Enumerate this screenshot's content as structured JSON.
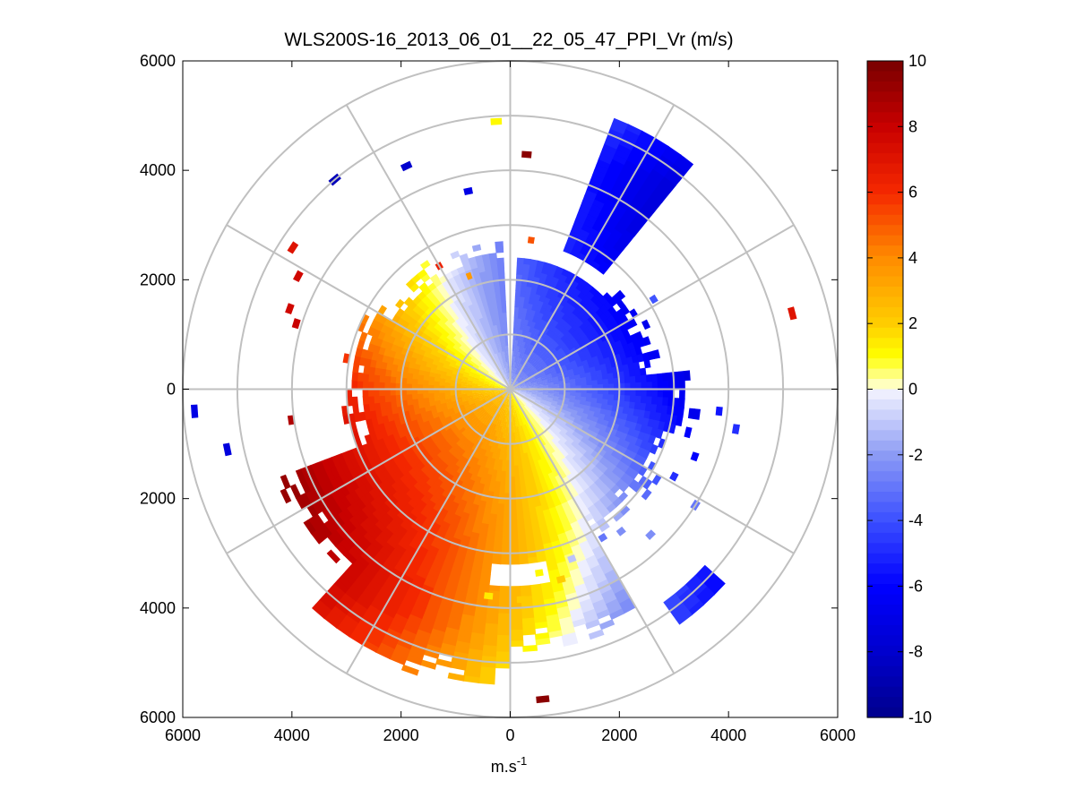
{
  "chart_data": {
    "type": "heatmap",
    "subtype": "polar-ppi",
    "title": "WLS200S-16_2013_06_01__22_05_47_PPI_Vr (m/s)",
    "xlabel_base": "m.s",
    "xlabel_sup": "-1",
    "ylabel": "",
    "xlim": [
      -6000,
      6000
    ],
    "ylim": [
      -6000,
      6000
    ],
    "x_ticks": [
      "6000",
      "4000",
      "2000",
      "0",
      "2000",
      "4000",
      "6000"
    ],
    "y_ticks": [
      "6000",
      "4000",
      "2000",
      "0",
      "2000",
      "4000",
      "6000"
    ],
    "range_rings": [
      1000,
      2000,
      3000,
      4000,
      5000,
      6000
    ],
    "spoke_angles_deg": [
      0,
      30,
      60,
      90,
      120,
      150,
      180,
      210,
      240,
      270,
      300,
      330
    ],
    "max_range": 5500,
    "range_gate": 100,
    "azimuth_step_deg": 3,
    "colorbar": {
      "min": -10,
      "max": 10,
      "levels": 64,
      "tick_labels": [
        "10",
        "8",
        "6",
        "4",
        "2",
        "0",
        "-2",
        "-4",
        "-6",
        "-8",
        "-10"
      ],
      "tick_values": [
        10,
        8,
        6,
        4,
        2,
        0,
        -2,
        -4,
        -6,
        -8,
        -10
      ]
    },
    "wind_model": {
      "description": "approximate radial velocity Vr(az, r); positive = orange/red sector to the south-west, negative = blue sector to the north-east",
      "peak_azimuth_deg": 220,
      "amplitude": 9.5,
      "near_range_amplitude": 2.2,
      "amplitude_ramp_range": 4500,
      "rotation_deg_per_km": 8
    },
    "coverage": {
      "full_range": 2400,
      "sectors": [
        {
          "from_deg": 45,
          "to_deg": 85,
          "max_range": 2800
        },
        {
          "from_deg": 85,
          "to_deg": 105,
          "max_range": 3500
        },
        {
          "from_deg": 105,
          "to_deg": 150,
          "max_range": 3200
        },
        {
          "from_deg": 150,
          "to_deg": 180,
          "max_range": 4900
        },
        {
          "from_deg": 180,
          "to_deg": 222,
          "max_range": 5500
        },
        {
          "from_deg": 222,
          "to_deg": 250,
          "max_range": 4600
        },
        {
          "from_deg": 250,
          "to_deg": 300,
          "max_range": 3100
        },
        {
          "from_deg": 300,
          "to_deg": 330,
          "max_range": 2800
        },
        {
          "from_deg": 330,
          "to_deg": 360,
          "max_range": 2750
        },
        {
          "from_deg": 0,
          "to_deg": 45,
          "max_range": 2300
        }
      ],
      "bands": [
        {
          "from_deg": 22,
          "to_deg": 40,
          "r_min": 2700,
          "r_max": 5300
        },
        {
          "from_deg": 132,
          "to_deg": 144,
          "r_min": 4800,
          "r_max": 5350
        },
        {
          "from_deg": 200,
          "to_deg": 222,
          "r_min": 4600,
          "r_max": 5450
        }
      ],
      "gaps": [
        {
          "from_deg": 358,
          "to_deg": 360,
          "r_min": 0,
          "r_max": 3000
        },
        {
          "from_deg": 0,
          "to_deg": 3,
          "r_min": 0,
          "r_max": 3000
        },
        {
          "from_deg": 168,
          "to_deg": 186,
          "r_min": 3200,
          "r_max": 3600
        }
      ]
    },
    "isolated_returns": [
      {
        "az": 357,
        "r": 4900,
        "v": 1.0
      },
      {
        "az": 4,
        "r": 4300,
        "v": 9.5
      },
      {
        "az": 348,
        "r": 3700,
        "v": -7.0
      },
      {
        "az": 335,
        "r": 4500,
        "v": -8.0
      },
      {
        "az": 320,
        "r": 5000,
        "v": -8.5
      },
      {
        "az": 8,
        "r": 2750,
        "v": 5.0
      },
      {
        "az": 303,
        "r": 4750,
        "v": 7.0
      },
      {
        "az": 298,
        "r": 4400,
        "v": 7.5
      },
      {
        "az": 290,
        "r": 4300,
        "v": 7.5
      },
      {
        "az": 287,
        "r": 4100,
        "v": 8.0
      },
      {
        "az": 262,
        "r": 4050,
        "v": 8.5
      },
      {
        "az": 266,
        "r": 5800,
        "v": -7.0
      },
      {
        "az": 258,
        "r": 5300,
        "v": -7.5
      },
      {
        "az": 75,
        "r": 5350,
        "v": 7.0
      },
      {
        "az": 136,
        "r": 3700,
        "v": -2.5
      },
      {
        "az": 122,
        "r": 4000,
        "v": -3.0
      },
      {
        "az": 165,
        "r": 3600,
        "v": 2.0
      },
      {
        "az": 171,
        "r": 3400,
        "v": 1.0
      },
      {
        "az": 177,
        "r": 3850,
        "v": 2.0
      },
      {
        "az": 174,
        "r": 5700,
        "v": 9.5
      },
      {
        "az": 186,
        "r": 3800,
        "v": 1.5
      },
      {
        "az": 330,
        "r": 2600,
        "v": 6.5
      },
      {
        "az": 340,
        "r": 2200,
        "v": 3.5
      },
      {
        "az": 58,
        "r": 3100,
        "v": -4.0
      },
      {
        "az": 96,
        "r": 3850,
        "v": -5.5
      },
      {
        "az": 100,
        "r": 4200,
        "v": -5.0
      },
      {
        "az": 110,
        "r": 3600,
        "v": -6.0
      },
      {
        "az": 118,
        "r": 3400,
        "v": -5.0
      },
      {
        "az": 142,
        "r": 3300,
        "v": -2.5
      },
      {
        "az": 148,
        "r": 3200,
        "v": -3.0
      },
      {
        "az": 160,
        "r": 3300,
        "v": -1.0
      }
    ]
  }
}
